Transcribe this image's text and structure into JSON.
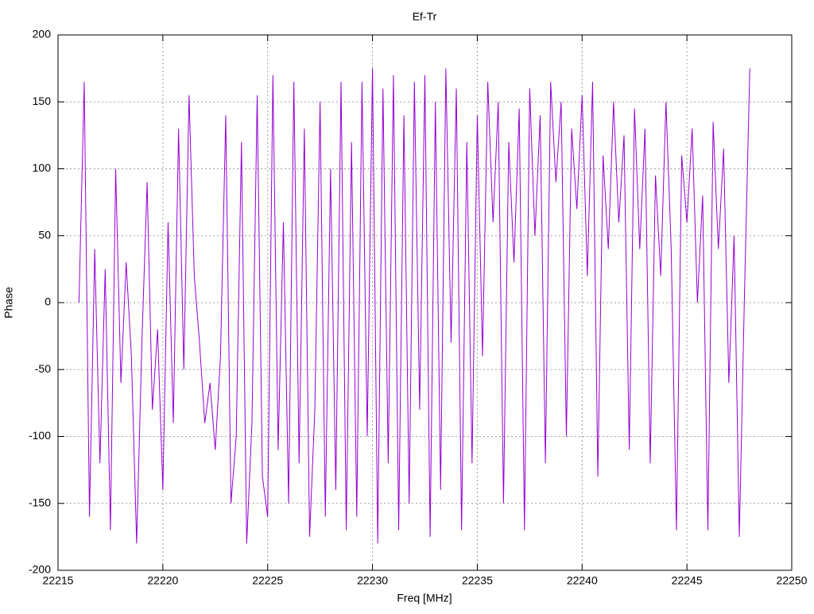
{
  "chart_data": {
    "type": "line",
    "title": "Ef-Tr",
    "x_label": "Freq [MHz]",
    "y_label": "Phase",
    "x": [
      22216,
      22216.25,
      22216.5,
      22216.75,
      22217,
      22217.25,
      22217.5,
      22217.75,
      22218,
      22218.25,
      22218.5,
      22218.75,
      22219,
      22219.25,
      22219.5,
      22219.75,
      22220,
      22220.25,
      22220.5,
      22220.75,
      22221,
      22221.25,
      22221.5,
      22221.75,
      22222,
      22222.25,
      22222.5,
      22222.75,
      22223,
      22223.25,
      22223.5,
      22223.75,
      22224,
      22224.25,
      22224.5,
      22224.75,
      22225,
      22225.25,
      22225.5,
      22225.75,
      22226,
      22226.25,
      22226.5,
      22226.75,
      22227,
      22227.25,
      22227.5,
      22227.75,
      22228,
      22228.25,
      22228.5,
      22228.75,
      22229,
      22229.25,
      22229.5,
      22229.75,
      22230,
      22230.25,
      22230.5,
      22230.75,
      22231,
      22231.25,
      22231.5,
      22231.75,
      22232,
      22232.25,
      22232.5,
      22232.75,
      22233,
      22233.25,
      22233.5,
      22233.75,
      22234,
      22234.25,
      22234.5,
      22234.75,
      22235,
      22235.25,
      22235.5,
      22235.75,
      22236,
      22236.25,
      22236.5,
      22236.75,
      22237,
      22237.25,
      22237.5,
      22237.75,
      22238,
      22238.25,
      22238.5,
      22238.75,
      22239,
      22239.25,
      22239.5,
      22239.75,
      22240,
      22240.25,
      22240.5,
      22240.75,
      22241,
      22241.25,
      22241.5,
      22241.75,
      22242,
      22242.25,
      22242.5,
      22242.75,
      22243,
      22243.25,
      22243.5,
      22243.75,
      22244,
      22244.25,
      22244.5,
      22244.75,
      22245,
      22245.25,
      22245.5,
      22245.75,
      22246,
      22246.25,
      22246.5,
      22246.75,
      22247,
      22247.25,
      22247.5,
      22247.75,
      22248
    ],
    "series": [
      {
        "color": "#9400d3",
        "values": [
          0,
          165,
          -160,
          40,
          -120,
          25,
          -170,
          100,
          -60,
          30,
          -40,
          -180,
          -30,
          90,
          -80,
          -20,
          -140,
          60,
          -90,
          130,
          -50,
          155,
          20,
          -30,
          -90,
          -60,
          -110,
          -40,
          140,
          -150,
          -100,
          120,
          -180,
          -90,
          155,
          -130,
          -160,
          170,
          -110,
          60,
          -150,
          165,
          -120,
          130,
          -175,
          -80,
          150,
          -160,
          100,
          -140,
          165,
          -170,
          120,
          -160,
          165,
          -100,
          175,
          -180,
          160,
          -120,
          170,
          -170,
          140,
          -150,
          165,
          -80,
          170,
          -175,
          150,
          -140,
          175,
          -30,
          160,
          -170,
          120,
          -120,
          140,
          -40,
          165,
          60,
          150,
          -150,
          120,
          30,
          145,
          -170,
          160,
          50,
          140,
          -120,
          165,
          90,
          150,
          -100,
          130,
          70,
          155,
          20,
          165,
          -130,
          110,
          40,
          150,
          60,
          125,
          -110,
          145,
          40,
          130,
          -120,
          95,
          20,
          150,
          40,
          -170,
          110,
          60,
          130,
          0,
          80,
          -170,
          135,
          40,
          115,
          -60,
          50,
          -175,
          10,
          175
        ]
      }
    ],
    "xlim": [
      22215,
      22250
    ],
    "xticks": [
      22215,
      22220,
      22225,
      22230,
      22235,
      22240,
      22245,
      22250
    ],
    "ylim": [
      -200,
      200
    ],
    "yticks": [
      -200,
      -150,
      -100,
      -50,
      0,
      50,
      100,
      150,
      200
    ],
    "grid": true
  }
}
